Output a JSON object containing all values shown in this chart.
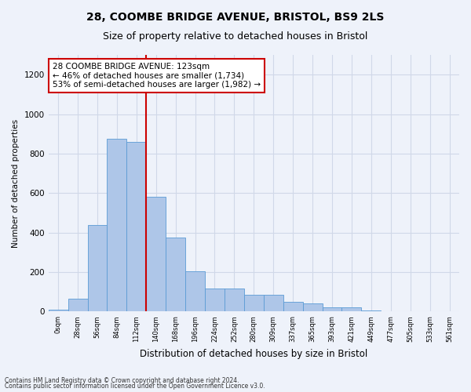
{
  "title1": "28, COOMBE BRIDGE AVENUE, BRISTOL, BS9 2LS",
  "title2": "Size of property relative to detached houses in Bristol",
  "xlabel": "Distribution of detached houses by size in Bristol",
  "ylabel": "Number of detached properties",
  "bar_labels": [
    "0sqm",
    "28sqm",
    "56sqm",
    "84sqm",
    "112sqm",
    "140sqm",
    "168sqm",
    "196sqm",
    "224sqm",
    "252sqm",
    "280sqm",
    "309sqm",
    "337sqm",
    "365sqm",
    "393sqm",
    "421sqm",
    "449sqm",
    "477sqm",
    "505sqm",
    "533sqm",
    "561sqm"
  ],
  "bar_values": [
    10,
    65,
    440,
    875,
    860,
    580,
    375,
    205,
    115,
    115,
    85,
    85,
    50,
    40,
    20,
    20,
    5,
    3,
    2,
    1,
    1
  ],
  "bar_color": "#aec6e8",
  "bar_edge_color": "#5b9bd5",
  "vline_x": 4.5,
  "vline_color": "#cc0000",
  "annotation_text": "28 COOMBE BRIDGE AVENUE: 123sqm\n← 46% of detached houses are smaller (1,734)\n53% of semi-detached houses are larger (1,982) →",
  "annotation_box_color": "#ffffff",
  "annotation_box_edge": "#cc0000",
  "ylim": [
    0,
    1300
  ],
  "yticks": [
    0,
    200,
    400,
    600,
    800,
    1000,
    1200
  ],
  "grid_color": "#d0d8e8",
  "footer1": "Contains HM Land Registry data © Crown copyright and database right 2024.",
  "footer2": "Contains public sector information licensed under the Open Government Licence v3.0.",
  "bg_color": "#eef2fa",
  "title1_fontsize": 10,
  "title2_fontsize": 9
}
